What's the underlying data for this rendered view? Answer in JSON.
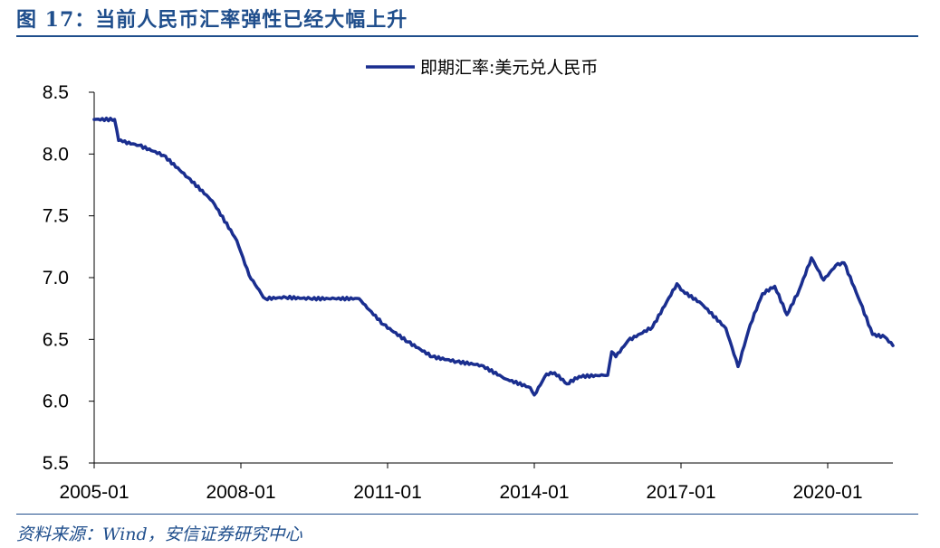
{
  "figure": {
    "title": "图 17：当前人民币汇率弹性已经大幅上升",
    "source": "资料来源：Wind，安信证券研究中心"
  },
  "chart_data": {
    "type": "line",
    "title": "",
    "xlabel": "",
    "ylabel": "",
    "ylim": [
      5.5,
      8.5
    ],
    "yticks": [
      "5.5",
      "6.0",
      "6.5",
      "7.0",
      "7.5",
      "8.0",
      "8.5"
    ],
    "xlim": [
      "2005-01",
      "2021-05"
    ],
    "xticks": [
      "2005-01",
      "2008-01",
      "2011-01",
      "2014-01",
      "2017-01",
      "2020-01"
    ],
    "grid": false,
    "legend": "top-center",
    "line_color": "#1a2e8f",
    "series": [
      {
        "name": "即期汇率:美元兑人民币",
        "x": [
          "2005-01",
          "2005-06",
          "2005-07",
          "2005-08",
          "2005-12",
          "2006-06",
          "2006-12",
          "2007-06",
          "2007-12",
          "2008-03",
          "2008-06",
          "2008-07",
          "2008-12",
          "2009-06",
          "2009-12",
          "2010-06",
          "2010-07",
          "2010-12",
          "2011-06",
          "2011-12",
          "2012-06",
          "2012-12",
          "2013-06",
          "2013-12",
          "2014-01",
          "2014-04",
          "2014-06",
          "2014-09",
          "2014-12",
          "2015-06",
          "2015-07",
          "2015-08",
          "2015-09",
          "2015-12",
          "2016-06",
          "2016-12",
          "2017-01",
          "2017-06",
          "2017-12",
          "2018-03",
          "2018-06",
          "2018-09",
          "2018-12",
          "2019-03",
          "2019-06",
          "2019-09",
          "2019-12",
          "2020-03",
          "2020-05",
          "2020-09",
          "2020-12",
          "2021-03",
          "2021-05"
        ],
        "values": [
          8.28,
          8.28,
          8.11,
          8.1,
          8.07,
          7.99,
          7.81,
          7.62,
          7.3,
          7.02,
          6.87,
          6.83,
          6.84,
          6.83,
          6.83,
          6.83,
          6.79,
          6.62,
          6.48,
          6.36,
          6.32,
          6.29,
          6.18,
          6.11,
          6.05,
          6.22,
          6.23,
          6.14,
          6.2,
          6.21,
          6.21,
          6.4,
          6.36,
          6.49,
          6.6,
          6.95,
          6.9,
          6.79,
          6.59,
          6.28,
          6.62,
          6.87,
          6.93,
          6.7,
          6.9,
          7.16,
          6.98,
          7.1,
          7.12,
          6.8,
          6.54,
          6.52,
          6.45
        ]
      }
    ]
  }
}
